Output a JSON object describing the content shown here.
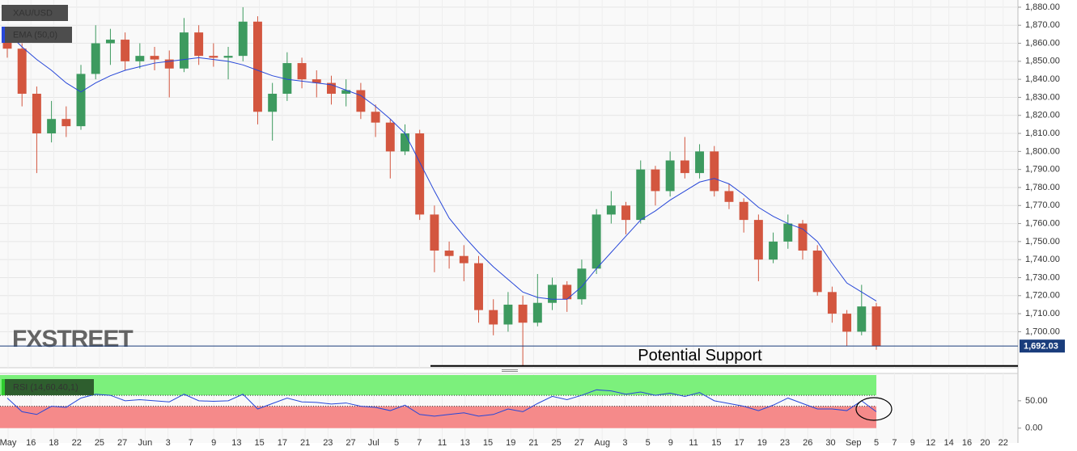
{
  "chart_data": {
    "type": "candlestick",
    "symbol": "XAU/USD",
    "watermark": "FXSTREET",
    "up_color": "#3d9a5f",
    "down_color": "#d3563f",
    "ylim": [
      1680,
      1884
    ],
    "yticks": [
      {
        "value": 1700,
        "label": "1,700.00"
      },
      {
        "value": 1710,
        "label": "1,710.00"
      },
      {
        "value": 1720,
        "label": "1,720.00"
      },
      {
        "value": 1730,
        "label": "1,730.00"
      },
      {
        "value": 1740,
        "label": "1,740.00"
      },
      {
        "value": 1750,
        "label": "1,750.00"
      },
      {
        "value": 1760,
        "label": "1,760.00"
      },
      {
        "value": 1770,
        "label": "1,770.00"
      },
      {
        "value": 1780,
        "label": "1,780.00"
      },
      {
        "value": 1790,
        "label": "1,790.00"
      },
      {
        "value": 1800,
        "label": "1,800.00"
      },
      {
        "value": 1810,
        "label": "1,810.00"
      },
      {
        "value": 1820,
        "label": "1,820.00"
      },
      {
        "value": 1830,
        "label": "1,830.00"
      },
      {
        "value": 1840,
        "label": "1,840.00"
      },
      {
        "value": 1850,
        "label": "1,850.00"
      },
      {
        "value": 1860,
        "label": "1,860.00"
      },
      {
        "value": 1870,
        "label": "1,870.00"
      },
      {
        "value": 1880,
        "label": "1,880.00"
      }
    ],
    "xticks": [
      "May",
      "16",
      "18",
      "22",
      "25",
      "27",
      "Jun",
      "3",
      "7",
      "9",
      "13",
      "15",
      "17",
      "21",
      "23",
      "27",
      "Jul",
      "5",
      "7",
      "11",
      "13",
      "15",
      "19",
      "21",
      "25",
      "27",
      "Aug",
      "3",
      "5",
      "9",
      "11",
      "15",
      "17",
      "19",
      "23",
      "26",
      "30",
      "Sep",
      "5",
      "7",
      "9",
      "12",
      "14",
      "16",
      "20",
      "22"
    ],
    "grid": true,
    "open": [
      1865,
      1857,
      1832,
      1810,
      1818,
      1814,
      1843,
      1860,
      1862,
      1850,
      1853,
      1851,
      1846,
      1866,
      1853,
      1852,
      1853,
      1872,
      1822,
      1832,
      1849,
      1840,
      1838,
      1832,
      1834,
      1822,
      1816,
      1800,
      1810,
      1765,
      1745,
      1742,
      1738,
      1712,
      1704,
      1715,
      1705,
      1716,
      1726,
      1718,
      1735,
      1765,
      1770,
      1762,
      1790,
      1778,
      1795,
      1788,
      1800,
      1778,
      1772,
      1762,
      1740,
      1750,
      1760,
      1745,
      1722,
      1710,
      1700,
      1714
    ],
    "high": [
      1868,
      1860,
      1836,
      1828,
      1825,
      1848,
      1870,
      1868,
      1866,
      1860,
      1858,
      1856,
      1874,
      1870,
      1860,
      1858,
      1880,
      1875,
      1838,
      1855,
      1852,
      1845,
      1842,
      1840,
      1838,
      1826,
      1818,
      1815,
      1812,
      1770,
      1750,
      1748,
      1742,
      1718,
      1722,
      1720,
      1732,
      1730,
      1728,
      1740,
      1768,
      1778,
      1772,
      1795,
      1792,
      1800,
      1808,
      1804,
      1803,
      1782,
      1774,
      1765,
      1755,
      1765,
      1762,
      1748,
      1725,
      1712,
      1726,
      1716
    ],
    "low": [
      1852,
      1825,
      1788,
      1805,
      1808,
      1812,
      1840,
      1848,
      1845,
      1846,
      1845,
      1830,
      1844,
      1848,
      1847,
      1840,
      1850,
      1815,
      1806,
      1828,
      1835,
      1830,
      1826,
      1825,
      1818,
      1808,
      1785,
      1798,
      1762,
      1733,
      1735,
      1728,
      1705,
      1698,
      1700,
      1681,
      1703,
      1712,
      1711,
      1715,
      1732,
      1760,
      1754,
      1760,
      1770,
      1775,
      1785,
      1785,
      1775,
      1768,
      1755,
      1728,
      1738,
      1746,
      1740,
      1720,
      1705,
      1692,
      1698,
      1690
    ],
    "close": [
      1857,
      1832,
      1810,
      1818,
      1814,
      1843,
      1860,
      1862,
      1850,
      1853,
      1851,
      1846,
      1866,
      1853,
      1852,
      1853,
      1872,
      1822,
      1832,
      1849,
      1840,
      1838,
      1832,
      1834,
      1822,
      1816,
      1800,
      1810,
      1765,
      1745,
      1742,
      1738,
      1712,
      1704,
      1715,
      1705,
      1716,
      1726,
      1718,
      1735,
      1765,
      1770,
      1762,
      1790,
      1778,
      1795,
      1788,
      1800,
      1778,
      1772,
      1762,
      1740,
      1750,
      1760,
      1745,
      1722,
      1710,
      1700,
      1714,
      1692
    ],
    "ema": {
      "name": "EMA (50,0)",
      "color": "#2747d8",
      "values": [
        1866,
        1858,
        1851,
        1845,
        1838,
        1833,
        1838,
        1842,
        1845,
        1847,
        1849,
        1850,
        1851,
        1852,
        1851,
        1850,
        1848,
        1845,
        1842,
        1840,
        1839,
        1838,
        1837,
        1834,
        1831,
        1825,
        1818,
        1810,
        1794,
        1778,
        1763,
        1753,
        1744,
        1736,
        1729,
        1722,
        1719,
        1718,
        1718,
        1725,
        1735,
        1744,
        1753,
        1762,
        1767,
        1773,
        1778,
        1783,
        1785,
        1782,
        1776,
        1769,
        1764,
        1760,
        1757,
        1750,
        1738,
        1727,
        1722,
        1717
      ]
    },
    "last_price": {
      "value": 1692.03,
      "label": "1,692.03"
    },
    "support": {
      "label": "Potential Support",
      "value": 1681
    },
    "rsi": {
      "name": "RSI (14,60,40,1)",
      "color": "#2747d8",
      "ylim": [
        -27,
        100
      ],
      "yticks": [
        {
          "value": 50,
          "label": "50.00"
        },
        {
          "value": 0,
          "label": "0.00"
        }
      ],
      "overbought": 60,
      "oversold": 40,
      "values": [
        55,
        30,
        25,
        40,
        38,
        55,
        62,
        60,
        50,
        52,
        50,
        48,
        62,
        50,
        49,
        50,
        62,
        35,
        45,
        55,
        48,
        47,
        44,
        46,
        40,
        38,
        32,
        42,
        25,
        22,
        25,
        28,
        22,
        25,
        35,
        30,
        45,
        58,
        52,
        60,
        70,
        68,
        62,
        66,
        60,
        64,
        58,
        65,
        50,
        45,
        40,
        32,
        42,
        55,
        45,
        35,
        35,
        32,
        50,
        30
      ]
    }
  }
}
